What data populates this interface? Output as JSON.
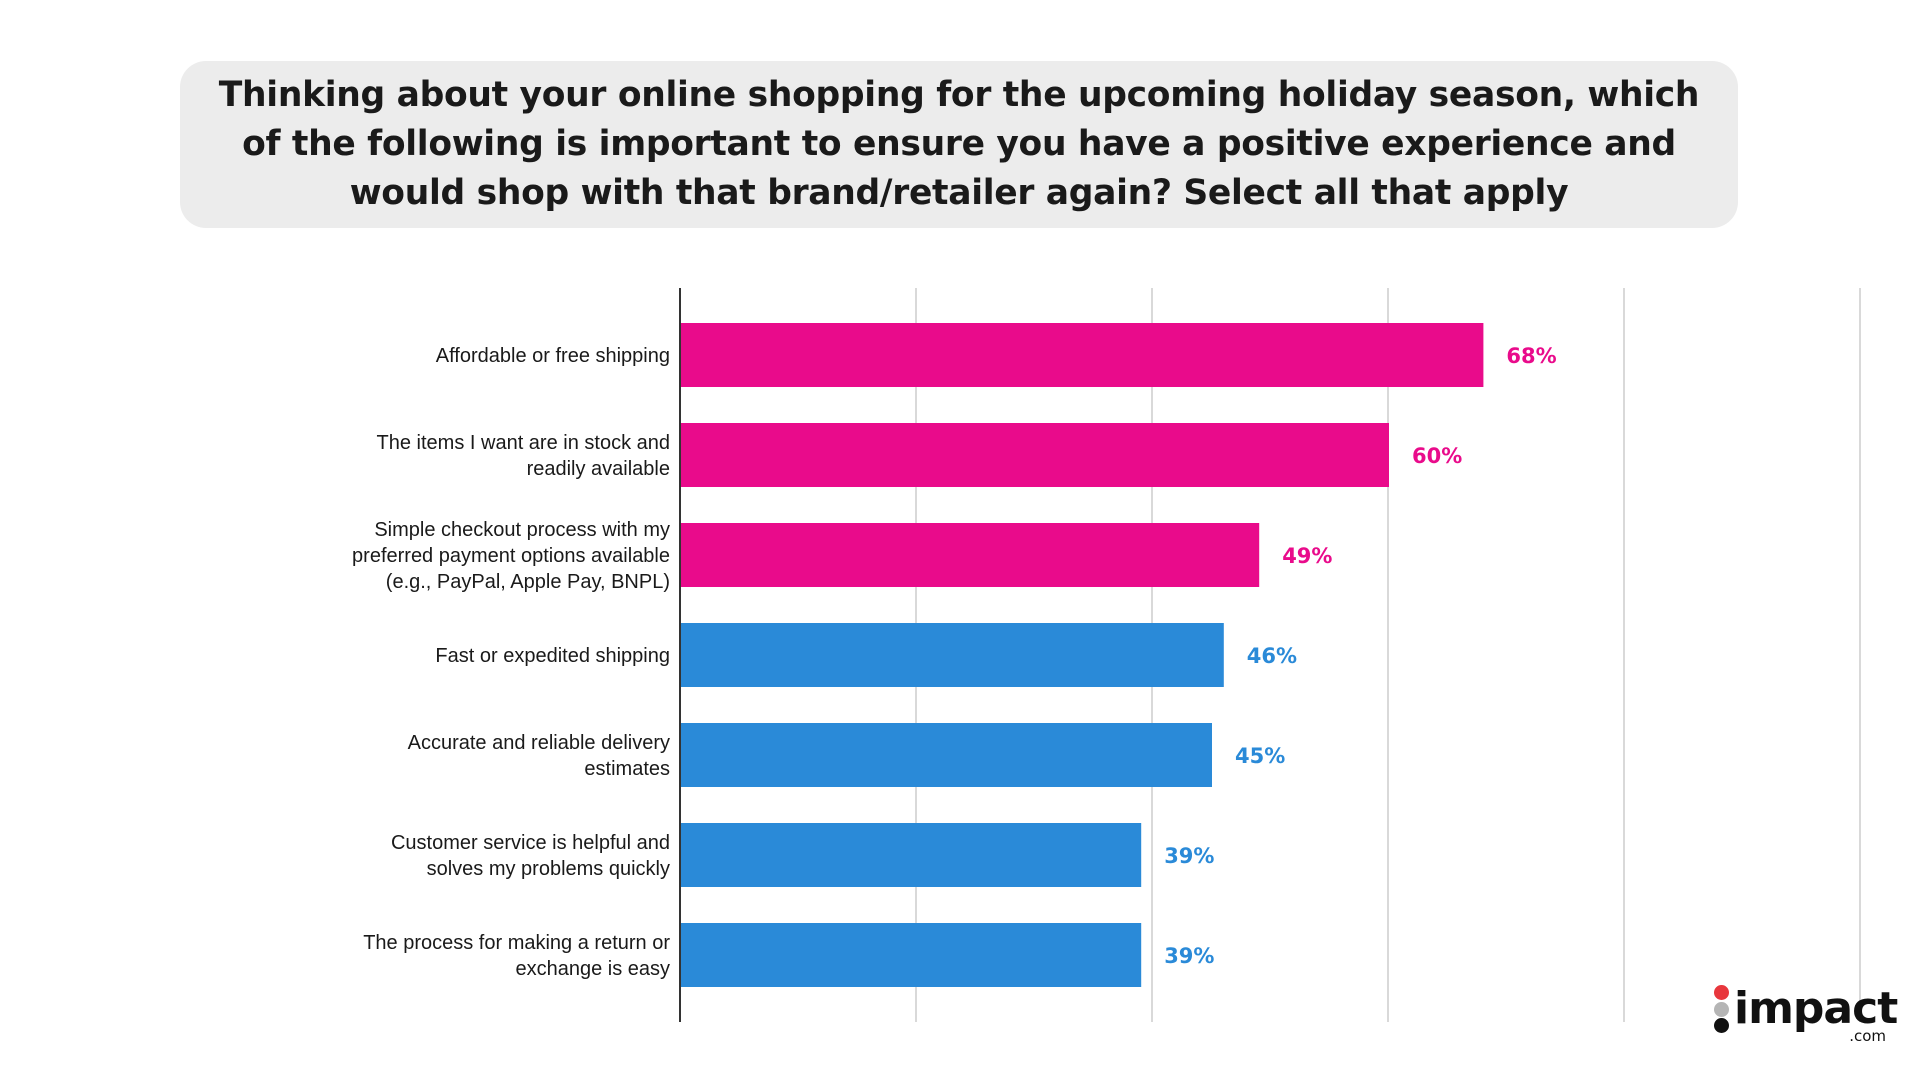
{
  "title": "Thinking about your online shopping for the upcoming holiday season, which of the following is important to ensure you have a positive experience and would shop with that brand/retailer again? Select all that apply",
  "title_lines": [
    "Thinking about your online shopping for the upcoming holiday season, which",
    "of the following is important to ensure you have a positive experience and",
    "would shop with that brand/retailer again? Select all that apply"
  ],
  "chart_data": {
    "type": "bar",
    "orientation": "horizontal",
    "title": "Thinking about your online shopping for the upcoming holiday season, which of the following is important to ensure you have a positive experience and would shop with that brand/retailer again? Select all that apply",
    "xlabel": "",
    "ylabel": "",
    "xlim": [
      0,
      100
    ],
    "grid": true,
    "legend": "none",
    "categories": [
      [
        "Affordable or free shipping"
      ],
      [
        "The items I want are in stock and",
        "readily available"
      ],
      [
        "Simple checkout process with my",
        "preferred payment options available",
        "(e.g., PayPal, Apple Pay, BNPL)"
      ],
      [
        "Fast or expedited shipping"
      ],
      [
        "Accurate and reliable delivery",
        "estimates"
      ],
      [
        "Customer service is helpful and",
        "solves my problems quickly"
      ],
      [
        "The process for making a return or",
        "exchange is easy"
      ]
    ],
    "values": [
      68,
      60,
      49,
      46,
      45,
      39,
      39
    ],
    "value_labels": [
      "68%",
      "60%",
      "49%",
      "46%",
      "45%",
      "39%",
      "39%"
    ],
    "highlight_count": 3,
    "colors": {
      "highlight": "#e90b8b",
      "normal": "#2a8ad8",
      "gridline": "#d9d9d9",
      "axis": "#333333"
    }
  },
  "logo": {
    "word": "impact",
    "sub": ".com",
    "colors": [
      "#e8373d",
      "#b5b5b5",
      "#111111"
    ]
  }
}
